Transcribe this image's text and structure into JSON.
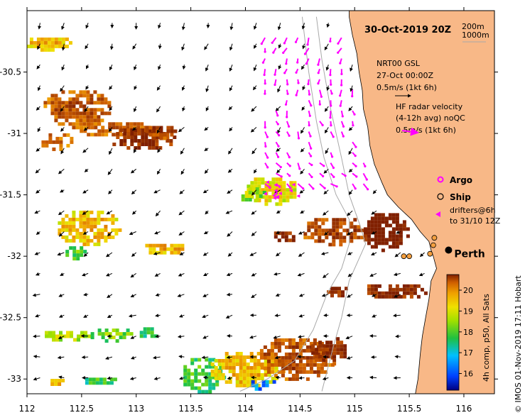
{
  "title": "30-Oct-2019 20Z",
  "isobaths": [
    "200m",
    "1000m"
  ],
  "wind_legend": {
    "source": "NRT00 GSL",
    "time": "27-Oct 00:00Z",
    "scale": "0.5m/s (1kt 6h)"
  },
  "hf_legend": {
    "line1": "HF radar velocity",
    "line2": "(4-12h avg) noQC",
    "scale": "0.5m/s (1kt 6h)"
  },
  "markers": {
    "argo": "Argo",
    "ship": "Ship",
    "drifters1": "drifters@6h",
    "drifters2": "to 31/10 12Z"
  },
  "city": "Perth",
  "colorbar": {
    "min": 16,
    "max": 20,
    "ticks": [
      "20",
      "19",
      "18",
      "17",
      "16"
    ],
    "label": "4h comp, p50, All Sats"
  },
  "side_label": "© IMOS 01-Nov-2019 17:11 Hobart",
  "x_axis": {
    "ticks": [
      "112",
      "112.5",
      "113",
      "113.5",
      "114",
      "114.5",
      "115",
      "115.5",
      "116"
    ]
  },
  "y_axis": {
    "ticks": [
      "-30.5",
      "-31",
      "-31.5",
      "-32",
      "-32.5",
      "-33"
    ]
  },
  "colors": {
    "land": "#F8B887",
    "argo": "#ff00ff",
    "hf_arrow": "#ff00ff",
    "drifter": "#ff00ff",
    "ship": "#000000",
    "bathy": "#a8a8a8"
  },
  "sst_patches": [
    {
      "lon": 112.18,
      "lat": -30.25,
      "rx": 0.22,
      "ry": 0.06,
      "temp": 19.3
    },
    {
      "lon": 112.45,
      "lat": -30.78,
      "rx": 0.33,
      "ry": 0.16,
      "temp": 20.1
    },
    {
      "lon": 112.25,
      "lat": -31.05,
      "rx": 0.15,
      "ry": 0.08,
      "temp": 19.9
    },
    {
      "lon": 112.8,
      "lat": -30.95,
      "rx": 0.35,
      "ry": 0.07,
      "temp": 20.0
    },
    {
      "lon": 113.05,
      "lat": -31.03,
      "rx": 0.3,
      "ry": 0.1,
      "temp": 20.6
    },
    {
      "lon": 113.2,
      "lat": -30.97,
      "rx": 0.15,
      "ry": 0.06,
      "temp": 20.3
    },
    {
      "lon": 112.55,
      "lat": -31.75,
      "rx": 0.3,
      "ry": 0.15,
      "temp": 19.3
    },
    {
      "lon": 112.42,
      "lat": -31.95,
      "rx": 0.1,
      "ry": 0.06,
      "temp": 18.1
    },
    {
      "lon": 113.25,
      "lat": -31.92,
      "rx": 0.2,
      "ry": 0.05,
      "temp": 19.4
    },
    {
      "lon": 114.23,
      "lat": -31.45,
      "rx": 0.25,
      "ry": 0.12,
      "temp": 19.0
    },
    {
      "lon": 114.05,
      "lat": -31.48,
      "rx": 0.12,
      "ry": 0.07,
      "temp": 18.5
    },
    {
      "lon": 114.35,
      "lat": -31.82,
      "rx": 0.12,
      "ry": 0.05,
      "temp": 20.5
    },
    {
      "lon": 114.8,
      "lat": -31.78,
      "rx": 0.3,
      "ry": 0.12,
      "temp": 20.3
    },
    {
      "lon": 115.27,
      "lat": -31.78,
      "rx": 0.22,
      "ry": 0.16,
      "temp": 21.0
    },
    {
      "lon": 115.35,
      "lat": -32.27,
      "rx": 0.3,
      "ry": 0.07,
      "temp": 20.6
    },
    {
      "lon": 114.8,
      "lat": -32.27,
      "rx": 0.12,
      "ry": 0.05,
      "temp": 20.5
    },
    {
      "lon": 112.35,
      "lat": -32.63,
      "rx": 0.22,
      "ry": 0.05,
      "temp": 18.7
    },
    {
      "lon": 112.75,
      "lat": -32.62,
      "rx": 0.2,
      "ry": 0.06,
      "temp": 18.3
    },
    {
      "lon": 113.1,
      "lat": -32.6,
      "rx": 0.1,
      "ry": 0.05,
      "temp": 17.9
    },
    {
      "lon": 112.65,
      "lat": -33.0,
      "rx": 0.15,
      "ry": 0.04,
      "temp": 17.9
    },
    {
      "lon": 112.25,
      "lat": -33.0,
      "rx": 0.1,
      "ry": 0.03,
      "temp": 19.4
    },
    {
      "lon": 113.6,
      "lat": -32.95,
      "rx": 0.2,
      "ry": 0.15,
      "temp": 18.0
    },
    {
      "lon": 114.0,
      "lat": -32.9,
      "rx": 0.35,
      "ry": 0.15,
      "temp": 19.3
    },
    {
      "lon": 114.45,
      "lat": -32.82,
      "rx": 0.35,
      "ry": 0.18,
      "temp": 20.2
    },
    {
      "lon": 114.75,
      "lat": -32.75,
      "rx": 0.18,
      "ry": 0.12,
      "temp": 20.6
    },
    {
      "lon": 114.15,
      "lat": -33.03,
      "rx": 0.13,
      "ry": 0.05,
      "temp": 17.0
    }
  ],
  "hf_region": {
    "lon_min": 114.18,
    "lon_max": 115.12,
    "lat_min": -31.45,
    "lat_max": -30.22
  },
  "argo_points": [
    {
      "lon": 115.73,
      "lat": -31.85
    },
    {
      "lon": 115.72,
      "lat": -31.91
    },
    {
      "lon": 115.69,
      "lat": -31.98
    },
    {
      "lon": 115.5,
      "lat": -32.0
    },
    {
      "lon": 115.45,
      "lat": -32.0
    }
  ],
  "perth": {
    "lon": 115.86,
    "lat": -31.95
  },
  "coast": [
    [
      114.95,
      -30.05
    ],
    [
      114.98,
      -30.2
    ],
    [
      115.02,
      -30.35
    ],
    [
      115.04,
      -30.5
    ],
    [
      115.07,
      -30.65
    ],
    [
      115.08,
      -30.8
    ],
    [
      115.12,
      -30.95
    ],
    [
      115.14,
      -31.1
    ],
    [
      115.18,
      -31.25
    ],
    [
      115.25,
      -31.4
    ],
    [
      115.3,
      -31.5
    ],
    [
      115.4,
      -31.6
    ],
    [
      115.52,
      -31.7
    ],
    [
      115.6,
      -31.8
    ],
    [
      115.68,
      -31.88
    ],
    [
      115.7,
      -31.95
    ],
    [
      115.72,
      -32.0
    ],
    [
      115.75,
      -32.1
    ],
    [
      115.7,
      -32.2
    ],
    [
      115.68,
      -32.35
    ],
    [
      115.65,
      -32.5
    ],
    [
      115.62,
      -32.65
    ],
    [
      115.6,
      -32.8
    ],
    [
      115.58,
      -33.0
    ],
    [
      115.55,
      -33.15
    ]
  ],
  "bathy_200": [
    [
      114.65,
      -30.05
    ],
    [
      114.7,
      -30.4
    ],
    [
      114.78,
      -30.8
    ],
    [
      114.88,
      -31.2
    ],
    [
      114.95,
      -31.5
    ],
    [
      115.05,
      -31.75
    ],
    [
      115.1,
      -31.9
    ],
    [
      115.05,
      -32.0
    ],
    [
      114.95,
      -32.2
    ],
    [
      114.88,
      -32.5
    ],
    [
      114.8,
      -32.75
    ],
    [
      114.7,
      -33.1
    ]
  ],
  "bathy_1000": [
    [
      114.52,
      -30.05
    ],
    [
      114.58,
      -30.5
    ],
    [
      114.65,
      -30.9
    ],
    [
      114.72,
      -31.2
    ],
    [
      114.83,
      -31.5
    ],
    [
      114.95,
      -31.7
    ],
    [
      114.95,
      -31.9
    ],
    [
      114.88,
      -32.1
    ],
    [
      114.75,
      -32.3
    ],
    [
      114.62,
      -32.6
    ],
    [
      114.45,
      -32.85
    ],
    [
      114.2,
      -33.0
    ],
    [
      113.95,
      -33.1
    ]
  ]
}
